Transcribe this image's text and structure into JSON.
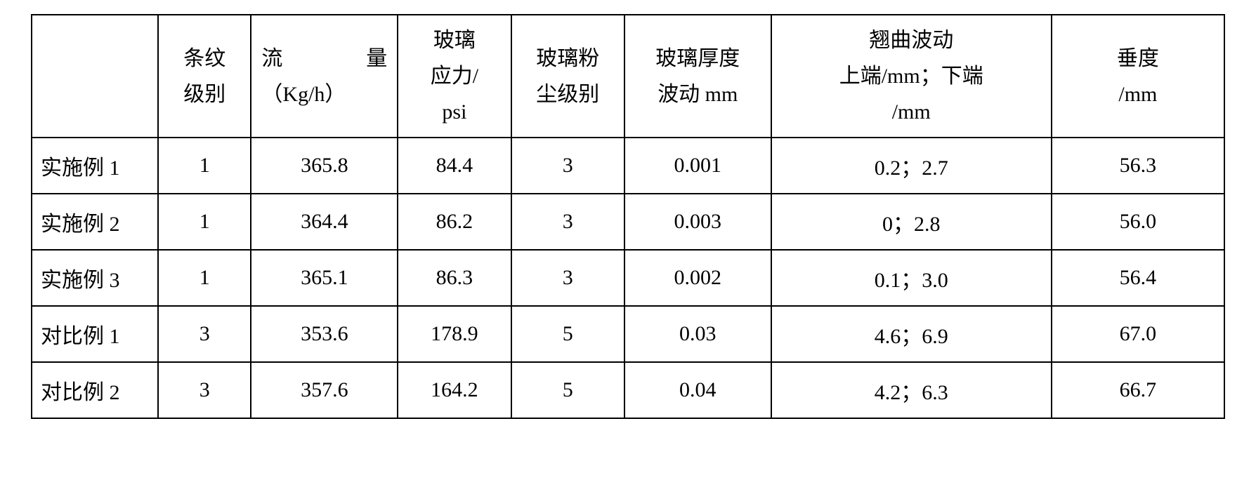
{
  "table": {
    "type": "table",
    "background_color": "#ffffff",
    "border_color": "#000000",
    "text_color": "#000000",
    "font_family": "SimSun",
    "font_size_pt": 22,
    "columns": [
      {
        "key": "label",
        "header": "",
        "width_pct": 10.6,
        "align": "left"
      },
      {
        "key": "stripe_level",
        "header_line1": "条纹",
        "header_line2": "级别",
        "width_pct": 7.8,
        "align": "center"
      },
      {
        "key": "flow_rate",
        "header_line1a": "流",
        "header_line1b": "量",
        "header_line2": "（Kg/h）",
        "width_pct": 12.3,
        "align": "center"
      },
      {
        "key": "glass_stress",
        "header_line1": "玻璃",
        "header_line2": "应力/",
        "header_line3": "psi",
        "width_pct": 9.5,
        "align": "center"
      },
      {
        "key": "glass_powder",
        "header_line1": "玻璃粉",
        "header_line2": "尘级别",
        "width_pct": 9.5,
        "align": "center"
      },
      {
        "key": "thickness_wave",
        "header_line1": "玻璃厚度",
        "header_line2": "波动 mm",
        "width_pct": 12.3,
        "align": "center"
      },
      {
        "key": "warp_wave",
        "header_line1": "翘曲波动",
        "header_line2": "上端/mm；下端",
        "header_line3": "/mm",
        "width_pct": 23.5,
        "align": "center"
      },
      {
        "key": "sag",
        "header_line1": "垂度",
        "header_line2": "/mm",
        "width_pct": 14.5,
        "align": "center"
      }
    ],
    "rows": [
      {
        "label": "实施例 1",
        "stripe_level": "1",
        "flow_rate": "365.8",
        "glass_stress": "84.4",
        "glass_powder": "3",
        "thickness_wave": "0.001",
        "warp_wave": "0.2；2.7",
        "sag": "56.3"
      },
      {
        "label": "实施例 2",
        "stripe_level": "1",
        "flow_rate": "364.4",
        "glass_stress": "86.2",
        "glass_powder": "3",
        "thickness_wave": "0.003",
        "warp_wave": "0；2.8",
        "sag": "56.0"
      },
      {
        "label": "实施例 3",
        "stripe_level": "1",
        "flow_rate": "365.1",
        "glass_stress": "86.3",
        "glass_powder": "3",
        "thickness_wave": "0.002",
        "warp_wave": "0.1；3.0",
        "sag": "56.4"
      },
      {
        "label": "对比例 1",
        "stripe_level": "3",
        "flow_rate": "353.6",
        "glass_stress": "178.9",
        "glass_powder": "5",
        "thickness_wave": "0.03",
        "warp_wave": "4.6；6.9",
        "sag": "67.0"
      },
      {
        "label": "对比例 2",
        "stripe_level": "3",
        "flow_rate": "357.6",
        "glass_stress": "164.2",
        "glass_powder": "5",
        "thickness_wave": "0.04",
        "warp_wave": "4.2；6.3",
        "sag": "66.7"
      }
    ]
  }
}
